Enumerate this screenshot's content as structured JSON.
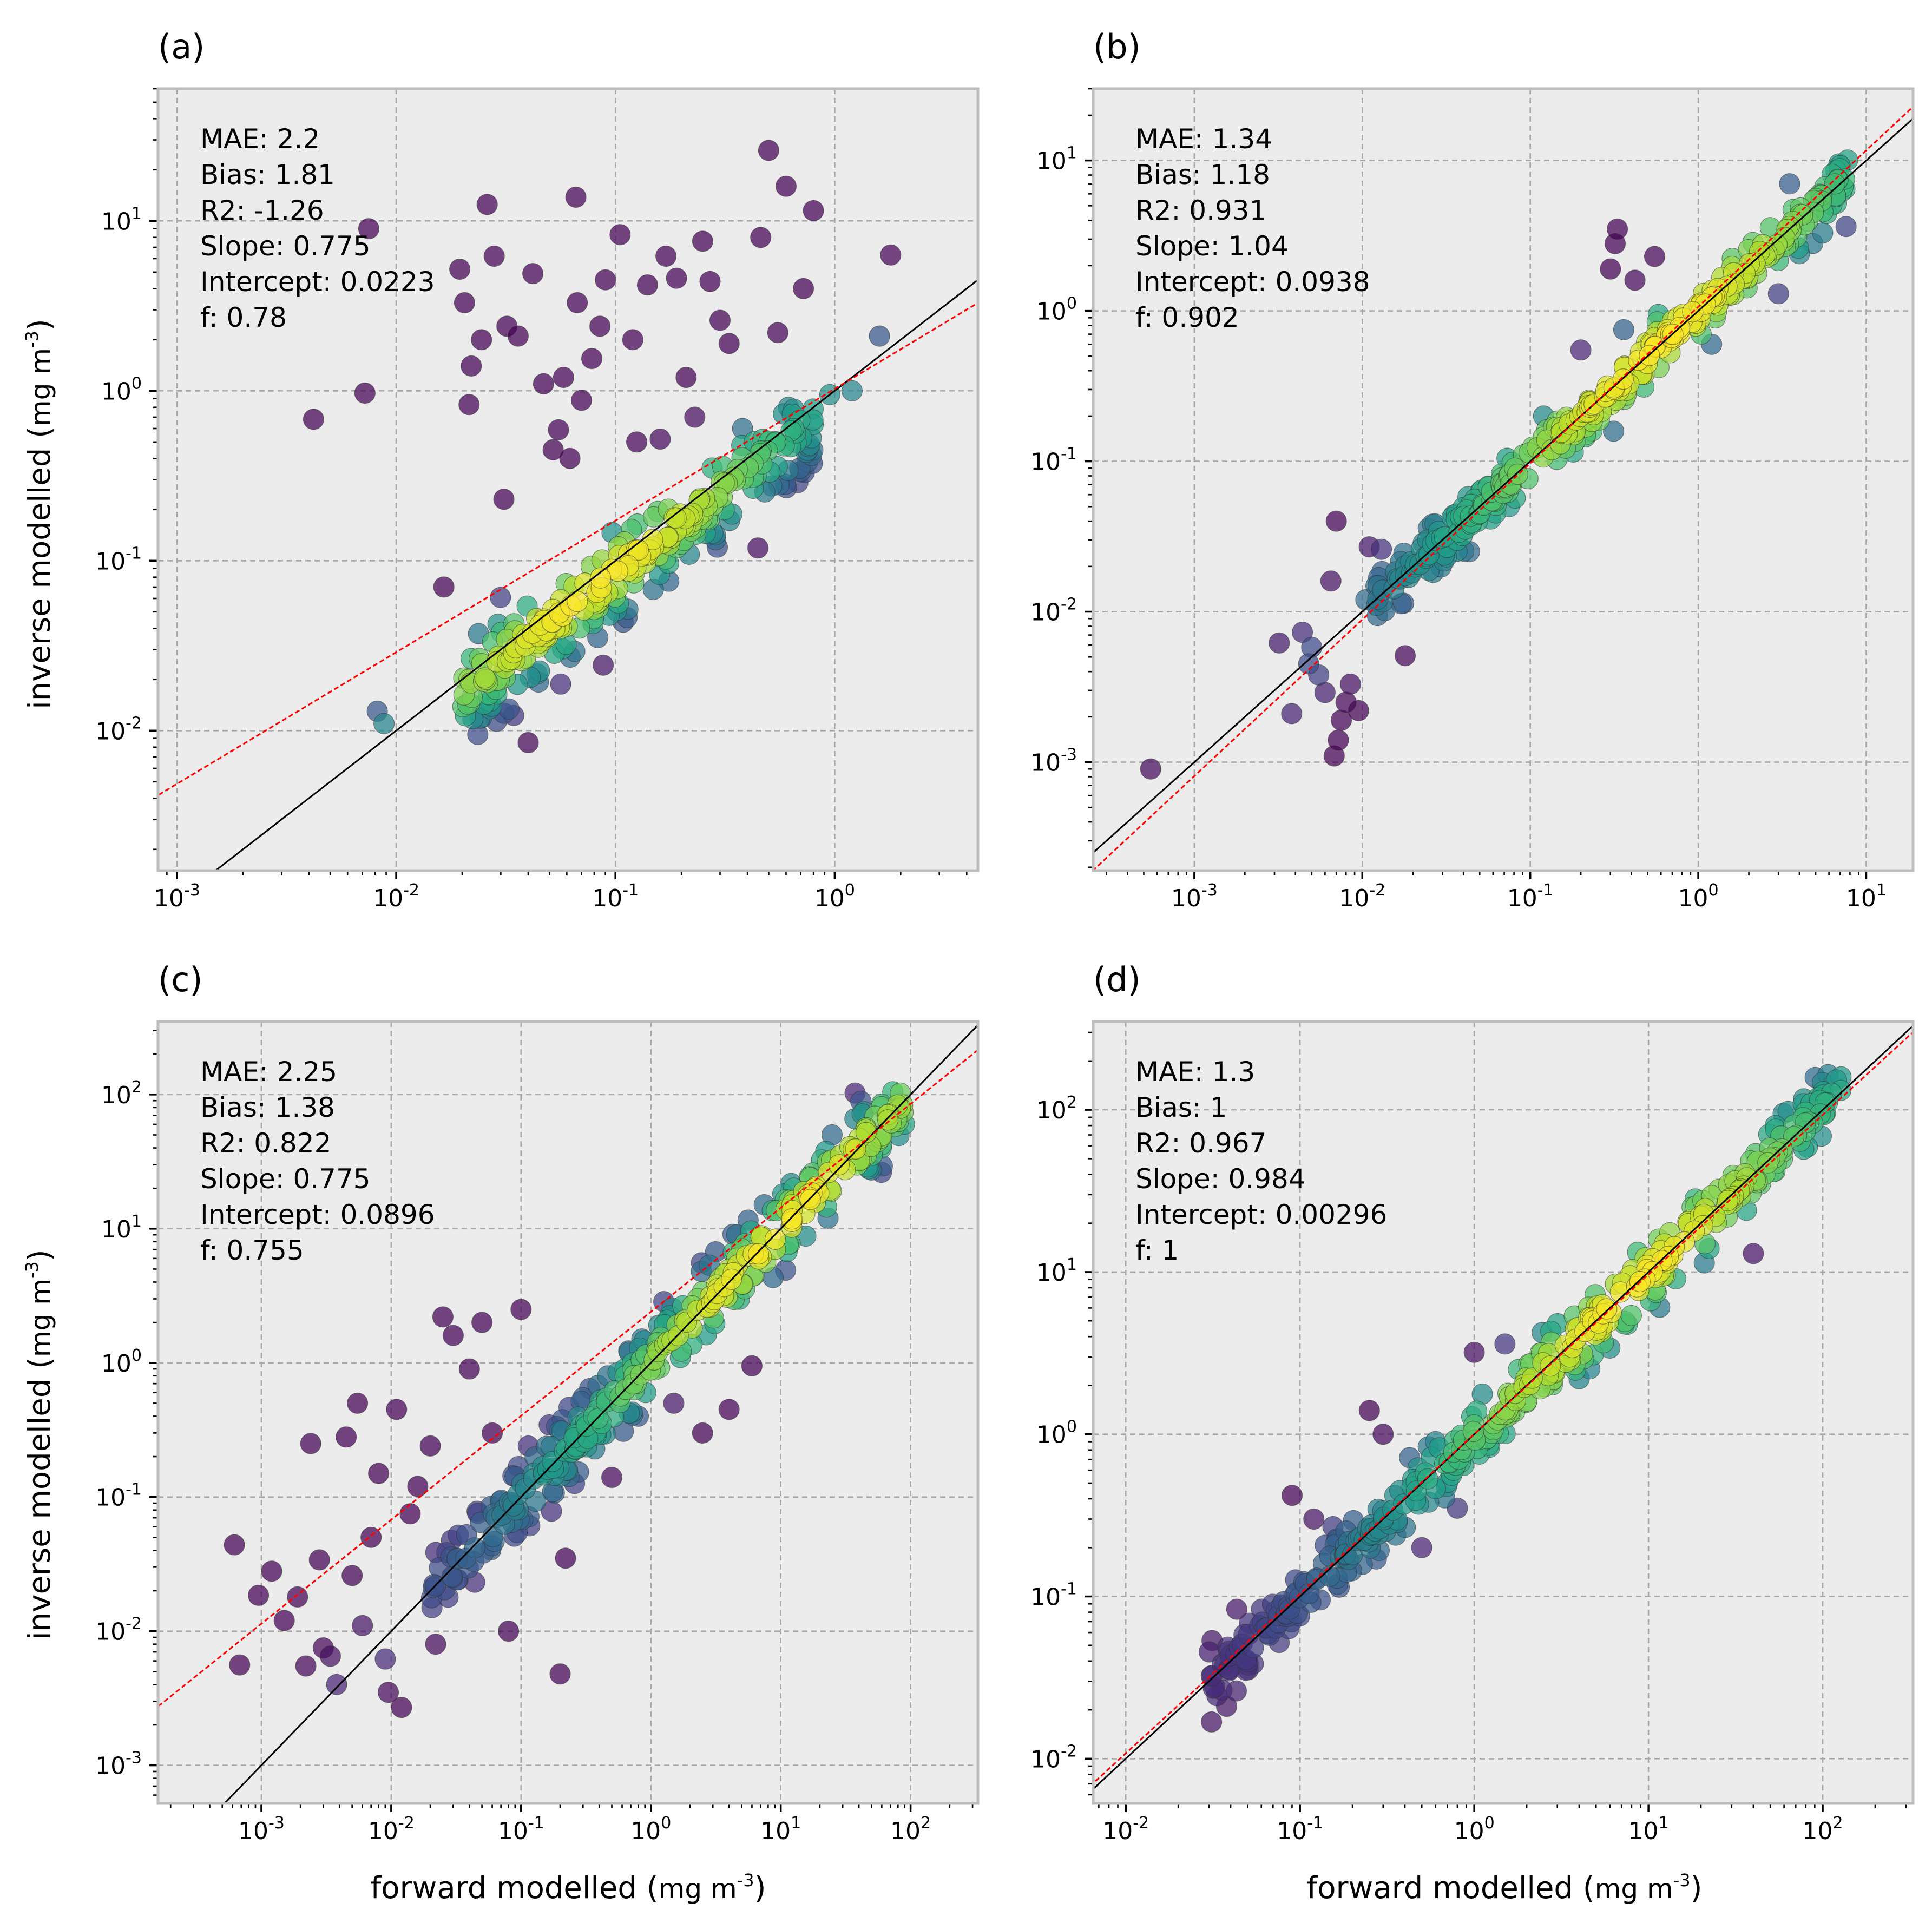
{
  "figure": {
    "x_axis_title": "forward modelled",
    "y_axis_title": "inverse modelled",
    "unit_base": "mg m",
    "unit_exp": "-3"
  },
  "colors": {
    "panel_background": "#ececec",
    "fit_line": "#ff0000",
    "one_to_one_line": "#000000",
    "colormap": [
      "#440154",
      "#482878",
      "#3e4989",
      "#31688e",
      "#26828e",
      "#1f9e89",
      "#35b779",
      "#6ece58",
      "#b5de2b",
      "#fde725"
    ]
  },
  "chart_data": [
    {
      "panel": "(a)",
      "type": "scatter",
      "xscale": "log",
      "yscale": "log",
      "xlim": [
        0.00082,
        4.5
      ],
      "ylim": [
        0.0015,
        60
      ],
      "xticks": [
        {
          "base": "10",
          "exp": "-3"
        },
        {
          "base": "10",
          "exp": "-2"
        },
        {
          "base": "10",
          "exp": "-1"
        },
        {
          "base": "10",
          "exp": "0"
        }
      ],
      "yticks": [
        {
          "base": "10",
          "exp": "-2"
        },
        {
          "base": "10",
          "exp": "-1"
        },
        {
          "base": "10",
          "exp": "0"
        },
        {
          "base": "10",
          "exp": "1"
        }
      ],
      "stats": [
        "MAE: 2.2",
        "Bias:  1.81",
        "R2: -1.26",
        "Slope: 0.775",
        "Intercept: 0.0223",
        "f: 0.78"
      ],
      "fit": {
        "slope": 0.775,
        "intercept": 0.0223
      },
      "density_center": [
        0.08,
        0.07
      ],
      "cloud": {
        "n": 260,
        "xmin": 0.02,
        "xmax": 0.8,
        "yoffset": -0.12,
        "sigma": 0.13
      },
      "outliers": [
        [
          0.0042,
          0.68
        ],
        [
          0.0072,
          0.97
        ],
        [
          0.0075,
          9.0
        ],
        [
          0.0082,
          0.013
        ],
        [
          0.0088,
          0.011
        ],
        [
          0.0165,
          0.07
        ],
        [
          0.0195,
          5.2
        ],
        [
          0.0205,
          3.3
        ],
        [
          0.0215,
          0.83
        ],
        [
          0.022,
          1.4
        ],
        [
          0.0245,
          2.0
        ],
        [
          0.026,
          12.5
        ],
        [
          0.028,
          6.2
        ],
        [
          0.031,
          0.23
        ],
        [
          0.032,
          2.4
        ],
        [
          0.036,
          2.1
        ],
        [
          0.04,
          0.0085
        ],
        [
          0.042,
          4.9
        ],
        [
          0.047,
          1.1
        ],
        [
          0.052,
          0.45
        ],
        [
          0.055,
          0.59
        ],
        [
          0.058,
          1.2
        ],
        [
          0.062,
          0.4
        ],
        [
          0.066,
          13.8
        ],
        [
          0.067,
          3.3
        ],
        [
          0.07,
          0.88
        ],
        [
          0.078,
          1.55
        ],
        [
          0.085,
          2.4
        ],
        [
          0.09,
          4.5
        ],
        [
          0.105,
          8.3
        ],
        [
          0.12,
          2.0
        ],
        [
          0.125,
          0.5
        ],
        [
          0.14,
          4.2
        ],
        [
          0.16,
          0.52
        ],
        [
          0.17,
          6.2
        ],
        [
          0.19,
          4.6
        ],
        [
          0.21,
          1.2
        ],
        [
          0.23,
          0.7
        ],
        [
          0.25,
          7.6
        ],
        [
          0.27,
          4.4
        ],
        [
          0.3,
          2.6
        ],
        [
          0.33,
          1.9
        ],
        [
          0.38,
          0.6
        ],
        [
          0.46,
          8.0
        ],
        [
          0.5,
          26.0
        ],
        [
          0.55,
          2.2
        ],
        [
          0.6,
          16.0
        ],
        [
          0.72,
          4.0
        ],
        [
          0.8,
          11.5
        ],
        [
          1.6,
          2.1
        ],
        [
          1.8,
          6.3
        ],
        [
          1.2,
          1.0
        ],
        [
          0.95,
          0.95
        ],
        [
          0.65,
          0.78
        ]
      ]
    },
    {
      "panel": "(b)",
      "type": "scatter",
      "xscale": "log",
      "yscale": "log",
      "xlim": [
        0.00025,
        19
      ],
      "ylim": [
        0.00019,
        30
      ],
      "xticks": [
        {
          "base": "10",
          "exp": "-3"
        },
        {
          "base": "10",
          "exp": "-2"
        },
        {
          "base": "10",
          "exp": "-1"
        },
        {
          "base": "10",
          "exp": "0"
        },
        {
          "base": "10",
          "exp": "1"
        }
      ],
      "yticks": [
        {
          "base": "10",
          "exp": "-3"
        },
        {
          "base": "10",
          "exp": "-2"
        },
        {
          "base": "10",
          "exp": "-1"
        },
        {
          "base": "10",
          "exp": "0"
        },
        {
          "base": "10",
          "exp": "1"
        }
      ],
      "stats": [
        "MAE: 1.34",
        "Bias:  1.18",
        "R2: 0.931",
        "Slope: 1.04",
        "Intercept: 0.0938",
        "f: 0.902"
      ],
      "fit": {
        "slope": 1.04,
        "intercept": 0.0938
      },
      "density_center": [
        0.6,
        0.6
      ],
      "cloud": {
        "n": 300,
        "xmin": 0.012,
        "xmax": 8.0,
        "yoffset": 0.0,
        "sigma": 0.09
      },
      "outliers": [
        [
          0.00055,
          0.0009
        ],
        [
          0.0032,
          0.0062
        ],
        [
          0.0038,
          0.0021
        ],
        [
          0.0044,
          0.0073
        ],
        [
          0.0048,
          0.0045
        ],
        [
          0.005,
          0.0058
        ],
        [
          0.0055,
          0.0038
        ],
        [
          0.006,
          0.0029
        ],
        [
          0.0065,
          0.016
        ],
        [
          0.007,
          0.04
        ],
        [
          0.0068,
          0.0011
        ],
        [
          0.0072,
          0.0014
        ],
        [
          0.0075,
          0.0019
        ],
        [
          0.008,
          0.0025
        ],
        [
          0.0085,
          0.0033
        ],
        [
          0.0095,
          0.0022
        ],
        [
          0.0105,
          0.012
        ],
        [
          0.011,
          0.027
        ],
        [
          0.013,
          0.026
        ],
        [
          0.018,
          0.0051
        ],
        [
          0.075,
          0.05
        ],
        [
          0.2,
          0.55
        ],
        [
          0.24,
          0.24
        ],
        [
          0.3,
          1.9
        ],
        [
          0.32,
          2.8
        ],
        [
          0.33,
          3.5
        ],
        [
          0.36,
          0.75
        ],
        [
          0.42,
          1.6
        ],
        [
          0.55,
          2.3
        ],
        [
          1.2,
          0.6
        ],
        [
          2.2,
          2.0
        ],
        [
          3.0,
          1.3
        ],
        [
          4.0,
          2.4
        ],
        [
          5.5,
          3.3
        ],
        [
          3.5,
          7.0
        ]
      ]
    },
    {
      "panel": "(c)",
      "type": "scatter",
      "xscale": "log",
      "yscale": "log",
      "xlim": [
        0.00016,
        330
      ],
      "ylim": [
        0.00052,
        350
      ],
      "xticks": [
        {
          "base": "10",
          "exp": "-3"
        },
        {
          "base": "10",
          "exp": "-2"
        },
        {
          "base": "10",
          "exp": "-1"
        },
        {
          "base": "10",
          "exp": "0"
        },
        {
          "base": "10",
          "exp": "1"
        },
        {
          "base": "10",
          "exp": "2"
        }
      ],
      "yticks": [
        {
          "base": "10",
          "exp": "-3"
        },
        {
          "base": "10",
          "exp": "-2"
        },
        {
          "base": "10",
          "exp": "-1"
        },
        {
          "base": "10",
          "exp": "0"
        },
        {
          "base": "10",
          "exp": "1"
        },
        {
          "base": "10",
          "exp": "2"
        }
      ],
      "stats": [
        "MAE: 2.25",
        "Bias:  1.38",
        "R2: 0.822",
        "Slope: 0.775",
        "Intercept: 0.0896",
        "f: 0.755"
      ],
      "fit": {
        "slope": 0.775,
        "intercept": 0.0896
      },
      "density_center": [
        10.0,
        10.0
      ],
      "cloud": {
        "n": 320,
        "xmin": 0.02,
        "xmax": 90,
        "yoffset": 0.02,
        "sigma": 0.16
      },
      "outliers": [
        [
          0.00062,
          0.044
        ],
        [
          0.00068,
          0.0056
        ],
        [
          0.00095,
          0.0185
        ],
        [
          0.0012,
          0.028
        ],
        [
          0.0015,
          0.012
        ],
        [
          0.0019,
          0.018
        ],
        [
          0.0022,
          0.0055
        ],
        [
          0.0024,
          0.25
        ],
        [
          0.0028,
          0.034
        ],
        [
          0.003,
          0.0075
        ],
        [
          0.0034,
          0.0065
        ],
        [
          0.0038,
          0.004
        ],
        [
          0.0045,
          0.28
        ],
        [
          0.005,
          0.026
        ],
        [
          0.0055,
          0.5
        ],
        [
          0.006,
          0.011
        ],
        [
          0.007,
          0.05
        ],
        [
          0.008,
          0.15
        ],
        [
          0.009,
          0.0062
        ],
        [
          0.0095,
          0.0035
        ],
        [
          0.011,
          0.45
        ],
        [
          0.012,
          0.0027
        ],
        [
          0.014,
          0.075
        ],
        [
          0.016,
          0.12
        ],
        [
          0.02,
          0.24
        ],
        [
          0.022,
          0.008
        ],
        [
          0.025,
          2.2
        ],
        [
          0.03,
          1.6
        ],
        [
          0.032,
          0.035
        ],
        [
          0.04,
          0.9
        ],
        [
          0.05,
          2.0
        ],
        [
          0.06,
          0.3
        ],
        [
          0.08,
          0.01
        ],
        [
          0.09,
          0.08
        ],
        [
          0.1,
          2.5
        ],
        [
          0.2,
          0.0048
        ],
        [
          0.22,
          0.035
        ],
        [
          0.3,
          0.55
        ],
        [
          0.5,
          0.14
        ],
        [
          0.8,
          0.4
        ],
        [
          1.5,
          0.5
        ],
        [
          2.5,
          0.3
        ],
        [
          4.0,
          0.45
        ],
        [
          6.0,
          0.95
        ]
      ]
    },
    {
      "panel": "(d)",
      "type": "scatter",
      "xscale": "log",
      "yscale": "log",
      "xlim": [
        0.0065,
        330
      ],
      "ylim": [
        0.0053,
        350
      ],
      "xticks": [
        {
          "base": "10",
          "exp": "-2"
        },
        {
          "base": "10",
          "exp": "-1"
        },
        {
          "base": "10",
          "exp": "0"
        },
        {
          "base": "10",
          "exp": "1"
        },
        {
          "base": "10",
          "exp": "2"
        }
      ],
      "yticks": [
        {
          "base": "10",
          "exp": "-2"
        },
        {
          "base": "10",
          "exp": "-1"
        },
        {
          "base": "10",
          "exp": "0"
        },
        {
          "base": "10",
          "exp": "1"
        },
        {
          "base": "10",
          "exp": "2"
        }
      ],
      "stats": [
        "MAE: 1.3",
        "Bias:  1",
        "R2: 0.967",
        "Slope: 0.984",
        "Intercept: 0.00296",
        "f: 1"
      ],
      "fit": {
        "slope": 0.984,
        "intercept": 0.00296
      },
      "density_center": [
        8.0,
        8.0
      ],
      "cloud": {
        "n": 380,
        "xmin": 0.03,
        "xmax": 130,
        "yoffset": 0.0,
        "sigma": 0.11
      },
      "outliers": [
        [
          0.09,
          0.42
        ],
        [
          0.12,
          0.3
        ],
        [
          0.18,
          0.18
        ],
        [
          0.25,
          1.4
        ],
        [
          0.3,
          1.0
        ],
        [
          0.35,
          0.42
        ],
        [
          0.5,
          0.2
        ],
        [
          0.6,
          0.9
        ],
        [
          0.8,
          0.35
        ],
        [
          1.0,
          3.2
        ],
        [
          1.5,
          3.6
        ],
        [
          2.0,
          1.6
        ],
        [
          3.0,
          4.8
        ],
        [
          4.0,
          2.2
        ],
        [
          6.0,
          3.4
        ],
        [
          30.0,
          28.0
        ],
        [
          40.0,
          13.0
        ]
      ]
    }
  ]
}
